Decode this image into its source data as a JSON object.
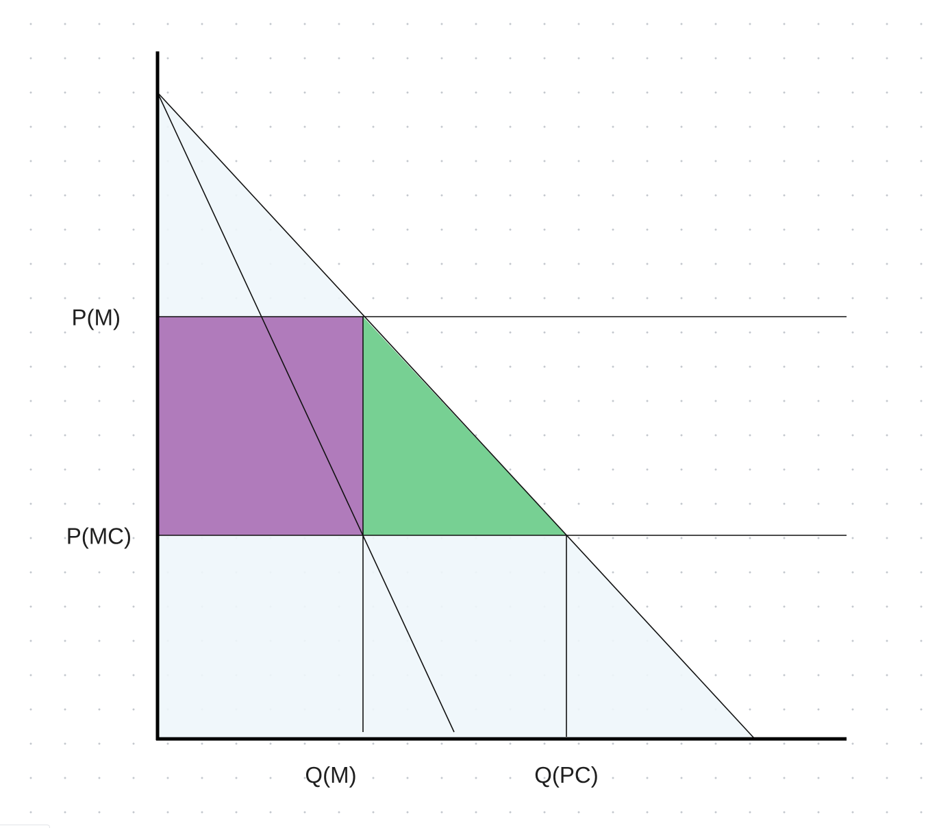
{
  "labels": {
    "monopoly_price": "P(M)",
    "marginal_cost_price": "P(MC)",
    "monopoly_quantity": "Q(M)",
    "competitive_quantity": "Q(PC)"
  },
  "colors": {
    "background": "#ffffff",
    "grid_dot": "#c4c8ce",
    "surplus_fill": "#eef6fb",
    "producer_surplus": "#b07bbb",
    "deadweight_loss": "#77d093",
    "line": "#111111",
    "axis": "#000000"
  }
}
